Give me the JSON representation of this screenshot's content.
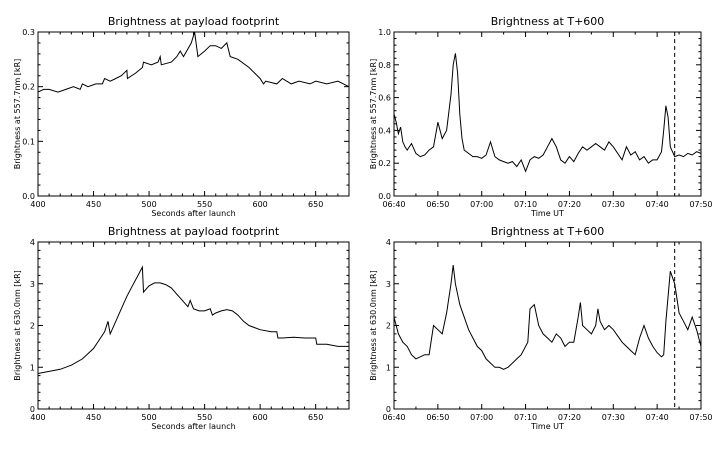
{
  "chart_data": [
    {
      "type": "line",
      "title": "Brightness at payload footprint",
      "xlabel": "Seconds after launch",
      "ylabel": "Brightness at 557.7nm  [kR]",
      "xlim": [
        400,
        680
      ],
      "ylim": [
        0.0,
        0.3
      ],
      "xticks": [
        400,
        450,
        500,
        550,
        600,
        650
      ],
      "xtick_labels": [
        "400",
        "450",
        "500",
        "550",
        "600",
        "650"
      ],
      "yticks": [
        0.0,
        0.1,
        0.2,
        0.3
      ],
      "ytick_labels": [
        "0.0",
        "0.1",
        "0.2",
        "0.3"
      ],
      "grid": false,
      "series": [
        {
          "x": [
            400,
            405,
            410,
            418,
            425,
            432,
            438,
            440,
            445,
            452,
            458,
            460,
            465,
            470,
            475,
            480,
            480.5,
            488,
            494,
            495,
            502,
            508,
            510,
            511,
            520,
            525,
            528,
            531,
            538,
            541,
            544,
            550,
            555,
            560,
            565,
            570,
            573,
            580,
            590,
            600,
            603,
            605,
            615,
            620,
            628,
            635,
            645,
            650,
            660,
            670,
            680
          ],
          "y": [
            0.19,
            0.195,
            0.195,
            0.19,
            0.195,
            0.2,
            0.195,
            0.205,
            0.2,
            0.205,
            0.205,
            0.215,
            0.21,
            0.215,
            0.22,
            0.23,
            0.215,
            0.225,
            0.235,
            0.245,
            0.24,
            0.245,
            0.255,
            0.24,
            0.245,
            0.255,
            0.265,
            0.255,
            0.28,
            0.3,
            0.255,
            0.265,
            0.275,
            0.275,
            0.27,
            0.28,
            0.255,
            0.25,
            0.235,
            0.215,
            0.205,
            0.21,
            0.205,
            0.215,
            0.205,
            0.21,
            0.205,
            0.21,
            0.205,
            0.21,
            0.2
          ]
        }
      ]
    },
    {
      "type": "line",
      "title": "Brightness at T+600",
      "xlabel": "Time UT",
      "ylabel": "Brightness at 557.7nm  [kR]",
      "xlim": [
        0,
        70
      ],
      "ylim": [
        0.0,
        1.0
      ],
      "xticks": [
        0,
        10,
        20,
        30,
        40,
        50,
        60,
        70
      ],
      "xtick_labels": [
        "06:40",
        "06:50",
        "07:00",
        "07:10",
        "07:20",
        "07:30",
        "07:40",
        "07:50"
      ],
      "yticks": [
        0.0,
        0.2,
        0.4,
        0.6,
        0.8,
        1.0
      ],
      "ytick_labels": [
        "0.0",
        "0.2",
        "0.4",
        "0.6",
        "0.8",
        "1.0"
      ],
      "grid": false,
      "vline": 64,
      "series": [
        {
          "x": [
            0,
            0.5,
            1,
            1.5,
            2,
            2.5,
            3,
            4,
            5,
            6,
            7,
            8,
            9,
            10,
            11,
            12,
            13,
            13.5,
            14,
            14.5,
            15,
            15.5,
            16,
            17,
            18,
            19,
            20,
            21,
            22,
            23,
            24,
            25,
            26,
            27,
            28,
            29,
            30,
            31,
            32,
            33,
            34,
            35,
            36,
            37,
            38,
            39,
            40,
            41,
            42,
            43,
            44,
            45,
            46,
            47,
            48,
            49,
            50,
            51,
            52,
            53,
            54,
            55,
            56,
            57,
            58,
            59,
            60,
            61,
            61.5,
            62,
            62.5,
            63,
            64,
            65,
            66,
            67,
            68,
            69,
            70
          ],
          "y": [
            0.5,
            0.45,
            0.38,
            0.42,
            0.33,
            0.3,
            0.28,
            0.32,
            0.26,
            0.24,
            0.25,
            0.28,
            0.3,
            0.45,
            0.35,
            0.4,
            0.62,
            0.8,
            0.87,
            0.75,
            0.5,
            0.35,
            0.28,
            0.26,
            0.24,
            0.24,
            0.23,
            0.25,
            0.33,
            0.24,
            0.22,
            0.21,
            0.2,
            0.21,
            0.18,
            0.22,
            0.15,
            0.22,
            0.24,
            0.23,
            0.25,
            0.3,
            0.35,
            0.3,
            0.22,
            0.2,
            0.24,
            0.21,
            0.26,
            0.3,
            0.28,
            0.3,
            0.32,
            0.3,
            0.28,
            0.33,
            0.3,
            0.26,
            0.22,
            0.3,
            0.25,
            0.27,
            0.22,
            0.24,
            0.2,
            0.22,
            0.22,
            0.27,
            0.4,
            0.55,
            0.48,
            0.3,
            0.24,
            0.25,
            0.24,
            0.26,
            0.25,
            0.27,
            0.26
          ]
        }
      ]
    },
    {
      "type": "line",
      "title": "Brightness at payload footprint",
      "xlabel": "Seconds after launch",
      "ylabel": "Brightness at 630.0nm  [kR]",
      "xlim": [
        400,
        680
      ],
      "ylim": [
        0,
        4
      ],
      "xticks": [
        400,
        450,
        500,
        550,
        600,
        650
      ],
      "xtick_labels": [
        "400",
        "450",
        "500",
        "550",
        "600",
        "650"
      ],
      "yticks": [
        0,
        1,
        2,
        3,
        4
      ],
      "ytick_labels": [
        "0",
        "1",
        "2",
        "3",
        "4"
      ],
      "grid": false,
      "series": [
        {
          "x": [
            400,
            410,
            420,
            430,
            440,
            450,
            455,
            460,
            463,
            465,
            470,
            475,
            480,
            485,
            490,
            494,
            495,
            500,
            505,
            510,
            515,
            520,
            525,
            530,
            535,
            537,
            540,
            545,
            550,
            555,
            557,
            560,
            565,
            570,
            575,
            580,
            585,
            590,
            595,
            600,
            610,
            615,
            616,
            620,
            630,
            640,
            650,
            651,
            660,
            670,
            680
          ],
          "y": [
            0.85,
            0.9,
            0.95,
            1.05,
            1.2,
            1.45,
            1.65,
            1.85,
            2.1,
            1.8,
            2.1,
            2.4,
            2.7,
            2.95,
            3.2,
            3.4,
            2.8,
            2.95,
            3.02,
            3.02,
            2.98,
            2.9,
            2.75,
            2.6,
            2.45,
            2.6,
            2.4,
            2.35,
            2.35,
            2.4,
            2.25,
            2.3,
            2.35,
            2.38,
            2.35,
            2.25,
            2.1,
            2.0,
            1.95,
            1.9,
            1.85,
            1.85,
            1.7,
            1.7,
            1.72,
            1.7,
            1.7,
            1.55,
            1.55,
            1.5,
            1.5
          ]
        }
      ]
    },
    {
      "type": "line",
      "title": "Brightness at T+600",
      "xlabel": "Time UT",
      "ylabel": "Brightness at 630.0nm  [kR]",
      "xlim": [
        0,
        70
      ],
      "ylim": [
        0,
        4
      ],
      "xticks": [
        0,
        10,
        20,
        30,
        40,
        50,
        60,
        70
      ],
      "xtick_labels": [
        "06:40",
        "06:50",
        "07:00",
        "07:10",
        "07:20",
        "07:30",
        "07:40",
        "07:50"
      ],
      "yticks": [
        0,
        1,
        2,
        3,
        4
      ],
      "ytick_labels": [
        "0",
        "1",
        "2",
        "3",
        "4"
      ],
      "grid": false,
      "vline": 64,
      "series": [
        {
          "x": [
            0,
            1,
            2,
            3,
            4,
            5,
            6,
            7,
            8,
            9,
            10,
            11,
            12,
            13,
            13.5,
            14,
            15,
            16,
            17,
            18,
            19,
            20,
            21,
            22,
            23,
            24,
            25,
            26,
            27,
            28,
            29,
            30,
            30.5,
            31,
            32,
            33,
            34,
            35,
            36,
            37,
            38,
            39,
            40,
            41,
            42,
            42.5,
            43,
            44,
            45,
            46,
            46.5,
            47,
            48,
            49,
            50,
            51,
            52,
            53,
            54,
            55,
            56,
            57,
            58,
            59,
            60,
            61,
            61.5,
            62,
            63,
            64,
            65,
            66,
            67,
            68,
            69,
            70
          ],
          "y": [
            2.2,
            1.8,
            1.6,
            1.5,
            1.3,
            1.2,
            1.25,
            1.3,
            1.3,
            2.0,
            1.9,
            1.8,
            2.3,
            3.0,
            3.45,
            3.0,
            2.5,
            2.2,
            1.9,
            1.7,
            1.5,
            1.4,
            1.2,
            1.1,
            1.0,
            1.0,
            0.95,
            1.0,
            1.1,
            1.2,
            1.3,
            1.5,
            1.6,
            2.4,
            2.5,
            2.0,
            1.8,
            1.7,
            1.6,
            1.8,
            1.7,
            1.5,
            1.6,
            1.6,
            2.2,
            2.55,
            2.0,
            1.9,
            1.8,
            2.0,
            2.4,
            2.1,
            1.9,
            2.0,
            1.9,
            1.75,
            1.6,
            1.5,
            1.4,
            1.3,
            1.7,
            2.0,
            1.7,
            1.5,
            1.35,
            1.25,
            1.3,
            2.1,
            3.3,
            3.0,
            2.3,
            2.1,
            1.9,
            2.2,
            1.9,
            1.5
          ]
        }
      ]
    }
  ]
}
